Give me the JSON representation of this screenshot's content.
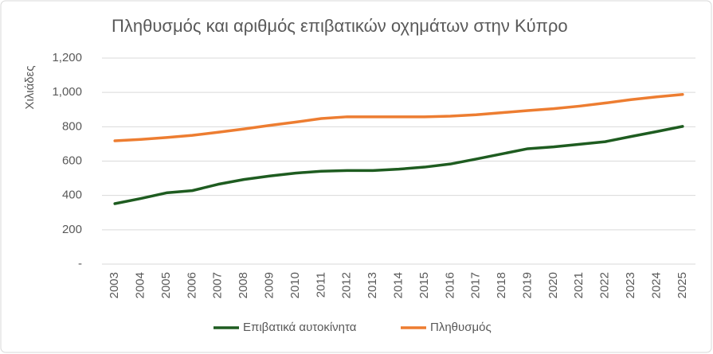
{
  "chart_data": {
    "type": "line",
    "title": "Πληθυσμός και αριθμός επιβατικών οχημάτων στην Κύπρο",
    "y_label": "Χιλιάδες",
    "categories": [
      "2003",
      "2004",
      "2005",
      "2006",
      "2007",
      "2008",
      "2009",
      "2010",
      "2011",
      "2012",
      "2013",
      "2014",
      "2015",
      "2016",
      "2017",
      "2018",
      "2019",
      "2020",
      "2021",
      "2022",
      "2023",
      "2024",
      "2025"
    ],
    "series": [
      {
        "name": "Επιβατικά αυτοκίνητα",
        "color": "#1e5c20",
        "values": [
          352,
          382,
          415,
          428,
          465,
          493,
          513,
          530,
          541,
          545,
          545,
          553,
          565,
          583,
          612,
          642,
          672,
          683,
          698,
          713,
          743,
          772,
          802
        ]
      },
      {
        "name": "Πληθυσμός",
        "color": "#ed7d31",
        "values": [
          718,
          726,
          737,
          750,
          768,
          787,
          808,
          827,
          848,
          858,
          858,
          858,
          858,
          862,
          870,
          882,
          894,
          905,
          920,
          938,
          958,
          974,
          988
        ]
      }
    ],
    "ylim": [
      0,
      1200
    ],
    "yticks": [
      {
        "value": 0,
        "label": "-"
      },
      200,
      400,
      600,
      800,
      {
        "value": 1000,
        "label": "1,000"
      },
      {
        "value": 1200,
        "label": "1,200"
      }
    ],
    "grid": true,
    "legend": "bottom"
  }
}
